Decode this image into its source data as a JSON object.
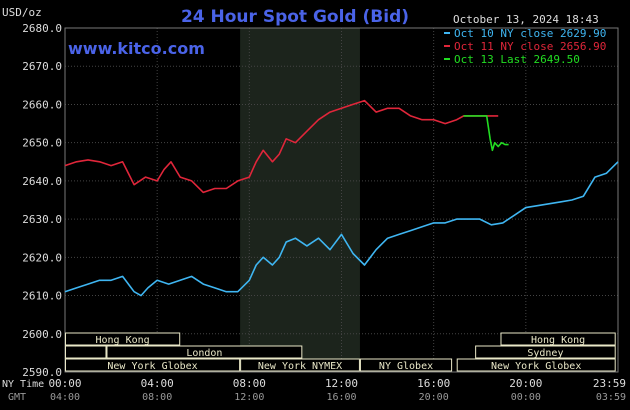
{
  "header": {
    "title": "24 Hour Spot Gold (Bid)",
    "unit": "USD/oz",
    "date": "October 13, 2024 18:43",
    "site": "www.kitco.com"
  },
  "colors": {
    "background": "#000000",
    "title": "#4a63e8",
    "site": "#4a63e8",
    "grid": "#444444",
    "shade": "#1c241c",
    "axis_text": "#dddddd",
    "oct10": "#3fb6f2",
    "oct11": "#e0263a",
    "oct13": "#22dd22",
    "market_box": "#eae8c8"
  },
  "chart_data": {
    "type": "line",
    "title": "24 Hour Spot Gold (Bid)",
    "ylabel": "USD/oz",
    "ylim": [
      2590,
      2680
    ],
    "yticks": [
      "2680.0",
      "2670.0",
      "2660.0",
      "2650.0",
      "2640.0",
      "2630.0",
      "2620.0",
      "2610.0",
      "2600.0",
      "2590.0"
    ],
    "xlim": [
      0,
      24
    ],
    "xticks_ny": [
      "00:00",
      "04:00",
      "08:00",
      "12:00",
      "16:00",
      "20:00",
      "23:59"
    ],
    "xticks_gmt": [
      "04:00",
      "08:00",
      "12:00",
      "16:00",
      "20:00",
      "00:00",
      "03:59"
    ],
    "x_axis_label_ny": "NY Time",
    "x_axis_label_gmt": "GMT",
    "grid": true,
    "shaded_range": [
      7.6,
      12.8
    ],
    "legend": [
      {
        "label": "Oct 10 NY close 2629.90",
        "color": "#3fb6f2"
      },
      {
        "label": "Oct 11 NY close 2656.90",
        "color": "#e0263a"
      },
      {
        "label": "Oct 13 Last 2649.50",
        "color": "#22dd22"
      }
    ],
    "series": [
      {
        "name": "Oct 10",
        "color": "#3fb6f2",
        "x": [
          0,
          0.5,
          1,
          1.5,
          2,
          2.5,
          3,
          3.3,
          3.6,
          4,
          4.5,
          5,
          5.5,
          6,
          6.5,
          7,
          7.5,
          8,
          8.3,
          8.6,
          9,
          9.3,
          9.6,
          10,
          10.5,
          11,
          11.5,
          12,
          12.5,
          13,
          13.5,
          14,
          14.5,
          15,
          15.5,
          16,
          16.5,
          17,
          17.5,
          18,
          18.5,
          19,
          19.5,
          20,
          20.5,
          21,
          21.5,
          22,
          22.5,
          23,
          23.5,
          24
        ],
        "y": [
          2611,
          2612,
          2613,
          2614,
          2614,
          2615,
          2611,
          2610,
          2612,
          2614,
          2613,
          2614,
          2615,
          2613,
          2612,
          2611,
          2611,
          2614,
          2618,
          2620,
          2618,
          2620,
          2624,
          2625,
          2623,
          2625,
          2622,
          2626,
          2621,
          2618,
          2622,
          2625,
          2626,
          2627,
          2628,
          2629,
          2629,
          2630,
          2630,
          2630,
          2628.5,
          2629,
          2631,
          2633,
          2633.5,
          2634,
          2634.5,
          2635,
          2636,
          2641,
          2642,
          2645
        ]
      },
      {
        "name": "Oct 11",
        "color": "#e0263a",
        "x": [
          0,
          0.5,
          1,
          1.5,
          2,
          2.5,
          3,
          3.5,
          4,
          4.3,
          4.6,
          5,
          5.5,
          6,
          6.5,
          7,
          7.5,
          8,
          8.3,
          8.6,
          9,
          9.3,
          9.6,
          10,
          10.5,
          11,
          11.5,
          12,
          12.5,
          13,
          13.5,
          14,
          14.5,
          15,
          15.5,
          16,
          16.5,
          17,
          17.3,
          18,
          18.3,
          18.6,
          18.8
        ],
        "y": [
          2644,
          2645,
          2645.5,
          2645,
          2644,
          2645,
          2639,
          2641,
          2640,
          2643,
          2645,
          2641,
          2640,
          2637,
          2638,
          2638,
          2640,
          2641,
          2645,
          2648,
          2645,
          2647,
          2651,
          2650,
          2653,
          2656,
          2658,
          2659,
          2660,
          2661,
          2658,
          2659,
          2659,
          2657,
          2656,
          2656,
          2655,
          2656,
          2657,
          2657,
          2657,
          2657,
          2657
        ]
      },
      {
        "name": "Oct 13",
        "color": "#22dd22",
        "x": [
          17.3,
          18.3,
          18.45,
          18.55,
          18.65,
          18.8,
          18.95,
          19.1,
          19.25
        ],
        "y": [
          2657,
          2657,
          2651,
          2648,
          2650,
          2649,
          2650,
          2649.5,
          2649.5
        ]
      }
    ]
  },
  "markets": {
    "row1": [
      {
        "name": "Hong Kong",
        "start": 0,
        "end": 5
      },
      {
        "name": "Hong Kong",
        "start": 18.9,
        "end": 23.9
      }
    ],
    "row2": [
      {
        "name": "",
        "start": 0,
        "end": 1.8
      },
      {
        "name": "London",
        "start": 1.8,
        "end": 10.3
      },
      {
        "name": "Sydney",
        "start": 17.8,
        "end": 23.9
      }
    ],
    "row3": [
      {
        "name": "New York Globex",
        "start": 0,
        "end": 7.6
      },
      {
        "name": "New York NYMEX",
        "start": 7.6,
        "end": 12.8
      },
      {
        "name": "NY Globex",
        "start": 12.8,
        "end": 16.8
      },
      {
        "name": "New York Globex",
        "start": 17,
        "end": 23.9
      }
    ]
  }
}
